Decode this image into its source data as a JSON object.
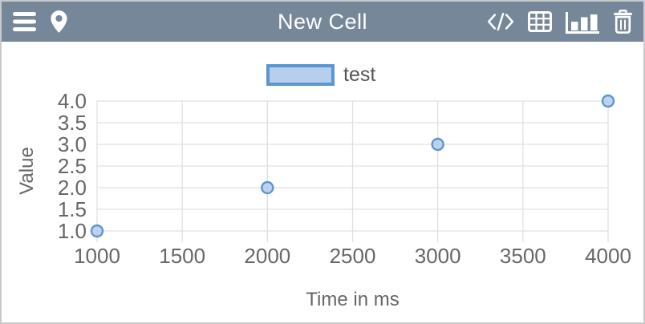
{
  "header": {
    "title": "New Cell",
    "left_icons": [
      "menu",
      "location-pin"
    ],
    "right_icons": [
      "code",
      "table",
      "bar-chart",
      "trash"
    ]
  },
  "legend": {
    "label": "test"
  },
  "chart_data": {
    "type": "scatter",
    "title": "",
    "xlabel": "Time in ms",
    "ylabel": "Value",
    "x": [
      1000,
      2000,
      3000,
      4000
    ],
    "series": [
      {
        "name": "test",
        "values": [
          1.0,
          2.0,
          3.0,
          4.0
        ]
      }
    ],
    "x_ticks": [
      1000,
      1500,
      2000,
      2500,
      3000,
      3500,
      4000
    ],
    "y_ticks": [
      4.0,
      3.5,
      3.0,
      2.5,
      2.0,
      1.5,
      1.0
    ],
    "xlim": [
      1000,
      4000
    ],
    "ylim": [
      1.0,
      4.0
    ],
    "grid": true,
    "legend_position": "top-center",
    "marker": "circle"
  },
  "colors": {
    "header_bg": "#76879a",
    "header_fg": "#ffffff",
    "window_border": "#c9c9c9",
    "grid_line": "#e0e0e0",
    "tick_text": "#666666",
    "axis_title_text": "#666666",
    "legend_text": "#555555",
    "legend_border": "#5a96d2",
    "legend_fill": "#b5cfec",
    "point_stroke": "#5a96d2",
    "point_fill": "#a9c7e8"
  }
}
